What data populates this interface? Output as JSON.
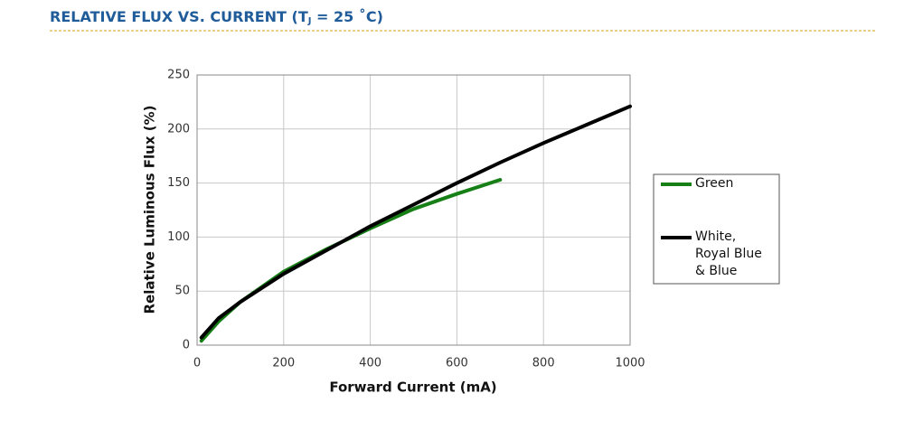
{
  "chart_data": {
    "type": "line",
    "title": [
      "RELATIVE FLUX VS. CURRENT (T",
      "J",
      " = 25 ˚C)"
    ],
    "x_label": "Forward Current (mA)",
    "y_label": "Relative Luminous Flux (%)",
    "xlim": [
      0,
      1000
    ],
    "xticks": [
      0,
      200,
      400,
      600,
      800,
      1000
    ],
    "ylim": [
      0,
      250
    ],
    "yticks": [
      0,
      50,
      100,
      150,
      200,
      250
    ],
    "grid": true,
    "series": [
      {
        "name": "Green",
        "color": "#168016",
        "x": [
          10,
          50,
          100,
          200,
          300,
          400,
          500,
          600,
          700
        ],
        "values": [
          4,
          22,
          40,
          68,
          89,
          108,
          126,
          140,
          153
        ]
      },
      {
        "name": "White,\nRoyal Blue\n& Blue",
        "color": "#000000",
        "x": [
          10,
          50,
          100,
          200,
          300,
          400,
          500,
          600,
          700,
          800,
          900,
          1000
        ],
        "values": [
          7,
          25,
          40,
          66,
          88,
          110,
          130,
          150,
          169,
          187,
          204,
          221
        ]
      }
    ]
  }
}
